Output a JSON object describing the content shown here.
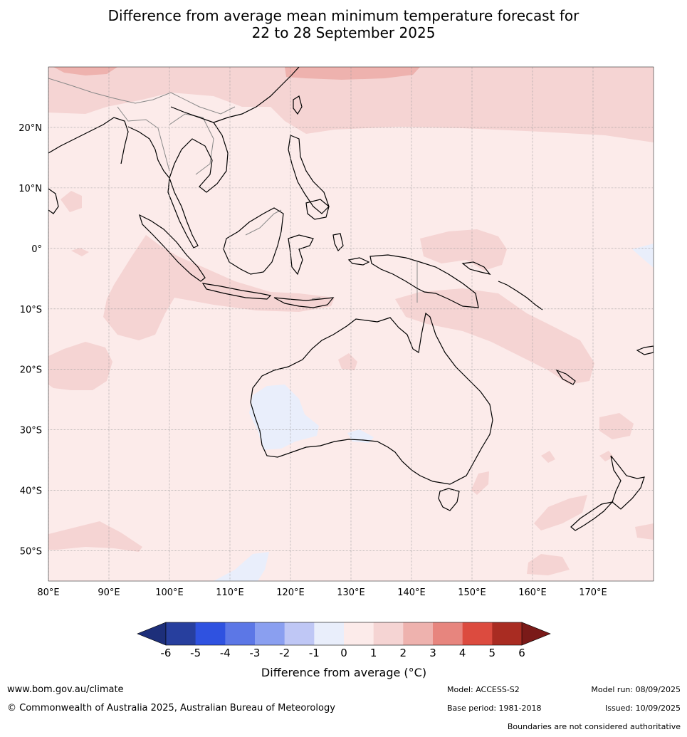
{
  "title": {
    "line1": "Difference from average mean minimum temperature forecast for",
    "line2": "22 to 28 September 2025"
  },
  "map": {
    "lon_range": [
      80,
      180
    ],
    "lat_range": [
      -55,
      30
    ],
    "lon_ticks": [
      {
        "value": 80,
        "label": "80°E"
      },
      {
        "value": 90,
        "label": "90°E"
      },
      {
        "value": 100,
        "label": "100°E"
      },
      {
        "value": 110,
        "label": "110°E"
      },
      {
        "value": 120,
        "label": "120°E"
      },
      {
        "value": 130,
        "label": "130°E"
      },
      {
        "value": 140,
        "label": "140°E"
      },
      {
        "value": 150,
        "label": "150°E"
      },
      {
        "value": 160,
        "label": "160°E"
      },
      {
        "value": 170,
        "label": "170°E"
      }
    ],
    "lat_ticks": [
      {
        "value": 20,
        "label": "20°N"
      },
      {
        "value": 10,
        "label": "10°N"
      },
      {
        "value": 0,
        "label": "0°"
      },
      {
        "value": -10,
        "label": "10°S"
      },
      {
        "value": -20,
        "label": "20°S"
      },
      {
        "value": -30,
        "label": "30°S"
      },
      {
        "value": -40,
        "label": "40°S"
      },
      {
        "value": -50,
        "label": "50°S"
      }
    ],
    "background_color": "#fcebea",
    "colors": {
      "anomaly_0_1": "#fcebea",
      "anomaly_1_2": "#f5d4d3",
      "anomaly_2_3": "#eeb2ae",
      "anomaly_neg1_0": "#e9eefb",
      "coastline": "#000000",
      "border": "#888888",
      "grid": "#999999"
    }
  },
  "colorbar": {
    "bins": [
      {
        "color": "#273f9e"
      },
      {
        "color": "#2f52e0"
      },
      {
        "color": "#5c77e6"
      },
      {
        "color": "#8a9ff0"
      },
      {
        "color": "#bfc7f5"
      },
      {
        "color": "#e9eefb"
      },
      {
        "color": "#fcebea"
      },
      {
        "color": "#f5d4d3"
      },
      {
        "color": "#eeb2ae"
      },
      {
        "color": "#e7857e"
      },
      {
        "color": "#dc4b3f"
      },
      {
        "color": "#a92c22"
      }
    ],
    "low_end_color": "#1d2f7a",
    "high_end_color": "#7a1a18",
    "tick_labels": [
      "-6",
      "-5",
      "-4",
      "-3",
      "-2",
      "-1",
      "0",
      "1",
      "2",
      "3",
      "4",
      "5",
      "6"
    ],
    "label": "Difference from average (°C)"
  },
  "footer": {
    "url": "www.bom.gov.au/climate",
    "copyright": "© Commonwealth of Australia 2025, Australian Bureau of Meteorology",
    "model": "Model: ACCESS-S2",
    "base_period": "Base period: 1981-2018",
    "model_run": "Model run: 08/09/2025",
    "issued": "Issued: 10/09/2025",
    "disclaimer": "Boundaries are not considered authoritative"
  }
}
